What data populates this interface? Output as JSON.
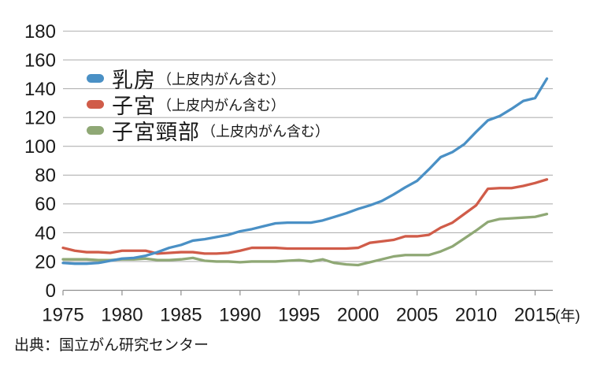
{
  "colors": {
    "gridline": "#b3b3b3",
    "axis": "#8f8f8f",
    "text": "#1a1a1a",
    "background": "#ffffff"
  },
  "chart_data": {
    "type": "line",
    "title": "",
    "xlabel": "",
    "ylabel": "",
    "xlabel_unit": "(年)",
    "source": "出典：国立がん研究センター",
    "grid": true,
    "legend_position": "upper-left-inside",
    "ylim": [
      0,
      180
    ],
    "y_ticks": [
      0,
      20,
      40,
      60,
      80,
      100,
      120,
      140,
      160,
      180
    ],
    "x_ticks": [
      1975,
      1980,
      1985,
      1990,
      1995,
      2000,
      2005,
      2010,
      2015
    ],
    "x": [
      1975,
      1976,
      1977,
      1978,
      1979,
      1980,
      1981,
      1982,
      1983,
      1984,
      1985,
      1986,
      1987,
      1988,
      1989,
      1990,
      1991,
      1992,
      1993,
      1994,
      1995,
      1996,
      1997,
      1998,
      1999,
      2000,
      2001,
      2002,
      2003,
      2004,
      2005,
      2006,
      2007,
      2008,
      2009,
      2010,
      2011,
      2012,
      2013,
      2014,
      2015,
      2016
    ],
    "series": [
      {
        "id": "breast",
        "name": "乳房（上皮内がん含む）",
        "label": "乳房",
        "sublabel": "（上皮内がん含む）",
        "color": "#4a90c5",
        "values": [
          19,
          18.5,
          18.5,
          19,
          20.5,
          22,
          22.5,
          24,
          26.5,
          29.5,
          31.5,
          34.5,
          35.5,
          37,
          38.5,
          41,
          42.5,
          44.5,
          46.5,
          47,
          47,
          47,
          48.5,
          51,
          53.5,
          56.5,
          59,
          62,
          66.5,
          71.5,
          76,
          84,
          92.5,
          96,
          101.5,
          110,
          118,
          121,
          126,
          131.5,
          133.5,
          147
        ]
      },
      {
        "id": "uterus",
        "name": "子宮（上皮内がん含む）",
        "label": "子宮",
        "sublabel": "（上皮内がん含む）",
        "color": "#d05c49",
        "values": [
          29.5,
          27.5,
          26.5,
          26.5,
          26,
          27.5,
          27.5,
          27.5,
          25.5,
          26,
          26.5,
          26.5,
          25.5,
          25.5,
          26,
          27.5,
          29.5,
          29.5,
          29.5,
          29,
          29,
          29,
          29,
          29,
          29,
          29.5,
          33,
          34,
          35,
          37.5,
          37.5,
          38.5,
          43.5,
          47,
          53,
          59,
          70.5,
          71,
          71,
          72.5,
          74.5,
          77
        ]
      },
      {
        "id": "cervix",
        "name": "子宮頸部（上皮内がん含む）",
        "label": "子宮頸部",
        "sublabel": "（上皮内がん含む）",
        "color": "#8fa875",
        "values": [
          21.5,
          21.5,
          21.5,
          21,
          21,
          21.5,
          21.5,
          22,
          21,
          21,
          21.5,
          22.5,
          20.5,
          20,
          20,
          19.5,
          20,
          20,
          20,
          20.5,
          21,
          20,
          21.5,
          19,
          18,
          17.5,
          19.5,
          21.5,
          23.5,
          24.5,
          24.5,
          24.5,
          27,
          30.5,
          36,
          41.5,
          47.5,
          49.5,
          50,
          50.5,
          51,
          53
        ]
      }
    ]
  }
}
